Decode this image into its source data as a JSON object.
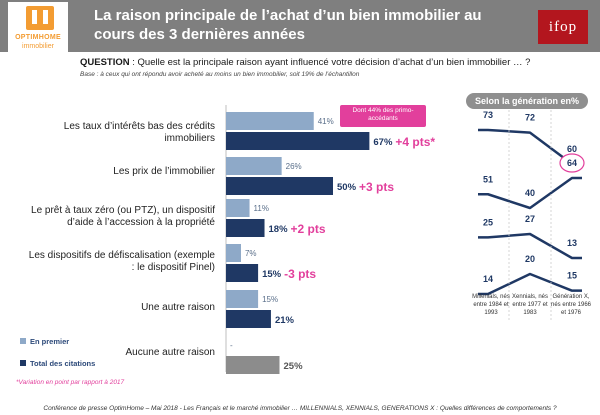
{
  "header": {
    "title": "La raison principale de l’achat d’un bien immobilier au cours des 3 dernières années",
    "logo_name": "OPTIMHOME",
    "logo_sub": "immobilier",
    "ifop_logo": "ifop"
  },
  "question": {
    "label": "QUESTION",
    "text": " : Quelle est la principale raison ayant influencé votre décision d’achat d’un bien immobilier … ?"
  },
  "base": "Base : à ceux qui ont répondu avoir acheté au moins un bien immobilier, soit 19% de l’échantillon",
  "note_box": "Dont 44% des primo-accédants",
  "legend": {
    "first": "En premier",
    "total": "Total des citations"
  },
  "footnote": "*Variation en point par rapport à 2017",
  "footer": "Conférence de presse OptimHome – Mai 2018 - Les Français et le marché immobilier … MILLENNIALS, XENNIALS, GENERATIONS X : Quelles différences de comportements ?",
  "colors": {
    "header": "#7f7f7f",
    "first": "#8ea9c8",
    "total": "#1f3864",
    "none": "#8c8c8c",
    "accent": "#e23f9c",
    "orange": "#f39c32",
    "ifop": "#b3161e"
  },
  "chart_data": [
    {
      "type": "bar",
      "orientation": "horizontal",
      "categories": [
        "Les taux d’intérêts bas des crédits immobiliers",
        "Les prix de l’immobilier",
        "Le prêt à taux zéro (ou PTZ), un dispositif d’aide à l’accession à la propriété",
        "Les dispositifs de défiscalisation (exemple : le dispositif Pinel)",
        "Une autre raison",
        "Aucune autre raison"
      ],
      "series": [
        {
          "name": "En premier",
          "values": [
            41,
            26,
            11,
            7,
            15,
            null
          ],
          "labels": [
            "41%",
            "26%",
            "11%",
            "7%",
            "15%",
            "-"
          ]
        },
        {
          "name": "Total des citations",
          "values": [
            67,
            50,
            18,
            15,
            21,
            25
          ],
          "labels": [
            "67%",
            "50%",
            "18%",
            "15%",
            "21%",
            "25%"
          ]
        }
      ],
      "variations": [
        "+4 pts*",
        "+3 pts",
        "+2 pts",
        "-3 pts",
        "",
        ""
      ],
      "xlim": [
        0,
        100
      ]
    },
    {
      "type": "line",
      "title": "Selon la génération en%",
      "x": [
        "Millenials, nés entre 1984 et 1993",
        "Xennials, nés entre 1977 et 1983",
        "Génération X, nés entre 1966 et 1976"
      ],
      "series": [
        {
          "values": [
            73,
            72,
            60
          ]
        },
        {
          "values": [
            51,
            40,
            64
          ],
          "highlight_index": 2
        },
        {
          "values": [
            25,
            27,
            13
          ]
        },
        {
          "values": [
            14,
            20,
            15
          ]
        }
      ]
    }
  ]
}
